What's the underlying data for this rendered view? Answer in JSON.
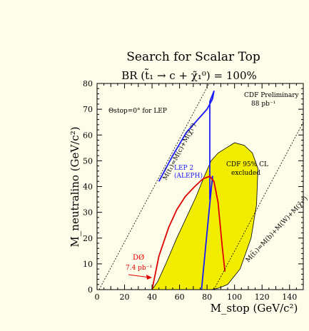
{
  "chart_data": {
    "type": "area",
    "title": "Search for Scalar Top",
    "subtitle": "BR (t̃₁ → c + χ̃₁⁰) = 100%",
    "xlabel": "M_stop (GeV/c²)",
    "ylabel": "M_neutralino (GeV/c²)",
    "xlim": [
      0,
      150
    ],
    "ylim": [
      0,
      80
    ],
    "x_ticks": [
      0,
      20,
      40,
      60,
      80,
      100,
      120,
      140
    ],
    "y_ticks": [
      0,
      10,
      20,
      30,
      40,
      50,
      60,
      70,
      80
    ],
    "grid": false,
    "colors": {
      "background": "#fdfdea",
      "cdf_fill": "#f2ec00",
      "lep2": "#1a1aff",
      "d0": "#e00000",
      "axes": "#000000"
    },
    "series": [
      {
        "name": "CDF 95% CL excluded",
        "kind": "filled-region",
        "color": "#f2ec00",
        "x": [
          40,
          44,
          50,
          58,
          65,
          72,
          78,
          83,
          88,
          94,
          100,
          107,
          113,
          117,
          116,
          112,
          104,
          95,
          88,
          83,
          83
        ],
        "y": [
          0,
          3,
          10,
          20,
          28,
          36,
          44,
          50,
          53,
          55,
          57,
          56,
          53,
          47,
          33,
          20,
          8,
          2,
          0.5,
          0,
          0
        ]
      },
      {
        "name": "LEP 2 (ALEPH)",
        "kind": "line",
        "color": "#1a1aff",
        "x": [
          45,
          55,
          65,
          80,
          81,
          84,
          85,
          82,
          82,
          84,
          84,
          81,
          76
        ],
        "y": [
          42,
          52,
          61,
          70,
          71,
          74,
          77,
          73,
          35,
          43,
          44,
          28,
          0
        ]
      },
      {
        "name": "D0 7.4 pb⁻¹",
        "kind": "line",
        "color": "#e00000",
        "x": [
          40,
          45,
          52,
          58,
          64,
          71,
          77,
          82,
          85,
          88,
          91,
          93
        ],
        "y": [
          0,
          13,
          24,
          31,
          36,
          40,
          43,
          44,
          42,
          34,
          17,
          7
        ]
      },
      {
        "name": "M(t̃₁)=M(c)+M(χ̃₁⁰)",
        "kind": "dashed-line",
        "color": "#000000",
        "x": [
          1.5,
          81.5
        ],
        "y": [
          0,
          80
        ]
      },
      {
        "name": "M(t̃₁)=M(b)+M(W)+M(χ̃₁⁰)",
        "kind": "dashed-line",
        "color": "#000000",
        "x": [
          85,
          150
        ],
        "y": [
          0,
          65
        ]
      }
    ],
    "annotations": {
      "theta": "Θstop=0° for LEP",
      "cdf_header": "CDF Preliminary",
      "cdf_lumi": "88 pb⁻¹",
      "lep_line1": "LEP 2",
      "lep_line2": "(ALEPH)",
      "cdf_region_line1": "CDF 95% CL",
      "cdf_region_line2": "excluded",
      "d0_name": "DØ",
      "d0_lumi": "7.4 pb⁻¹",
      "diag1": "M(t̃₁)=M(c)+M(χ̃₁⁰)",
      "diag2": "M(t̃₁)=M(b)+M(W)+M(χ̃₁⁰)"
    }
  }
}
